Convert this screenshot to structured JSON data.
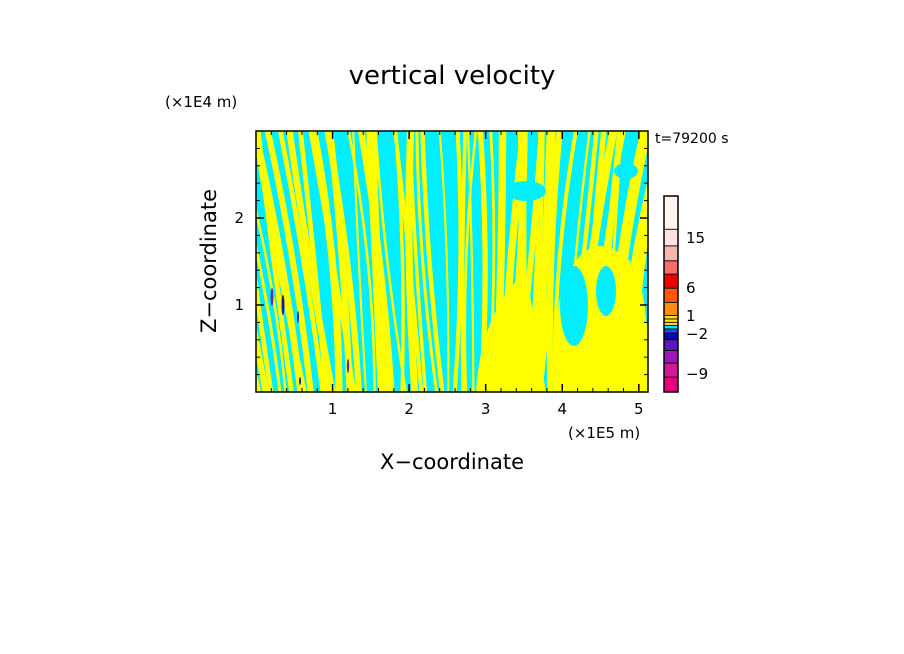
{
  "chart_data": {
    "type": "heatmap",
    "title": "vertical velocity",
    "xlabel": "X−coordinate",
    "ylabel": "Z−coordinate",
    "x_unit": "(×1E5 m)",
    "y_unit": "(×1E4 m)",
    "time_label": "t=79200 s",
    "xlim": [
      0,
      5.12
    ],
    "ylim": [
      0,
      3.0
    ],
    "x_ticks": [
      1,
      2,
      3,
      4,
      5
    ],
    "y_ticks": [
      1,
      2
    ],
    "x_tick_labels": [
      "1",
      "2",
      "3",
      "4",
      "5"
    ],
    "y_tick_labels": [
      "1",
      "2"
    ],
    "field_colors": {
      "positive": "#ffff00",
      "negative": "#00eeff",
      "strong_negative": "#1a1aa6",
      "strong_negative_2": "#5e2bb5"
    },
    "colorbar": {
      "levels": [
        {
          "color": "#e6007e"
        },
        {
          "color": "#cc1a99"
        },
        {
          "color": "#9c1ab3"
        },
        {
          "color": "#5a1ab3"
        },
        {
          "color": "#0a0a9c"
        },
        {
          "color": "#1a4dff"
        },
        {
          "color": "#00e6ff"
        },
        {
          "color": "#ffd633"
        },
        {
          "color": "#ffee00"
        },
        {
          "color": "#ffe600"
        },
        {
          "color": "#ff8c1a"
        },
        {
          "color": "#ff5a00"
        },
        {
          "color": "#ee0000"
        },
        {
          "color": "#f0706c"
        },
        {
          "color": "#f5b6b0"
        },
        {
          "color": "#fde3e0"
        },
        {
          "color": "#fff4f0"
        }
      ],
      "tick_labels": [
        "15",
        "6",
        "1",
        "−2",
        "−9"
      ]
    }
  }
}
